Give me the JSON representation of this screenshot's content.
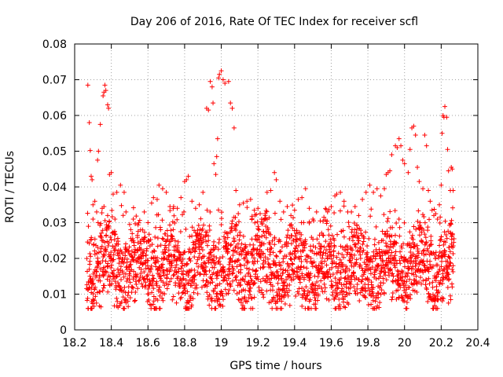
{
  "chart_data": {
    "type": "scatter",
    "title": "Day 206 of 2016, Rate Of TEC Index for receiver scfl",
    "xlabel": "GPS time / hours",
    "ylabel": "ROTI / TECUs",
    "xlim": [
      18.2,
      20.4
    ],
    "ylim": [
      0,
      0.08
    ],
    "x_ticks": [
      "18.2",
      "18.4",
      "18.6",
      "18.8",
      "19",
      "19.2",
      "19.4",
      "19.6",
      "19.8",
      "20",
      "20.2",
      "20.4"
    ],
    "y_ticks": [
      "0",
      "0.01",
      "0.02",
      "0.03",
      "0.04",
      "0.05",
      "0.06",
      "0.07",
      "0.08"
    ],
    "grid": true,
    "marker": "+",
    "color": "#ff0000",
    "series": [
      {
        "points": [
          [
            18.272,
            0.0685
          ],
          [
            18.28,
            0.058
          ],
          [
            18.285,
            0.0502
          ],
          [
            18.29,
            0.043
          ],
          [
            18.295,
            0.042
          ],
          [
            18.3,
            0.035
          ],
          [
            18.31,
            0.036
          ],
          [
            18.325,
            0.0475
          ],
          [
            18.33,
            0.05
          ],
          [
            18.34,
            0.0575
          ],
          [
            18.355,
            0.0655
          ],
          [
            18.36,
            0.0665
          ],
          [
            18.365,
            0.0685
          ],
          [
            18.37,
            0.067
          ],
          [
            18.38,
            0.063
          ],
          [
            18.385,
            0.062
          ],
          [
            18.39,
            0.0435
          ],
          [
            18.4,
            0.044
          ],
          [
            18.41,
            0.038
          ],
          [
            18.43,
            0.0385
          ],
          [
            18.45,
            0.0405
          ],
          [
            18.47,
            0.0385
          ],
          [
            18.35,
            0.034
          ],
          [
            18.36,
            0.0345
          ],
          [
            18.32,
            0.033
          ],
          [
            18.3,
            0.031
          ],
          [
            18.38,
            0.032
          ],
          [
            18.42,
            0.031
          ],
          [
            18.48,
            0.033
          ],
          [
            18.5,
            0.0295
          ],
          [
            18.52,
            0.031
          ],
          [
            18.56,
            0.028
          ],
          [
            18.58,
            0.033
          ],
          [
            18.6,
            0.03
          ],
          [
            18.62,
            0.0355
          ],
          [
            18.63,
            0.037
          ],
          [
            18.65,
            0.0365
          ],
          [
            18.66,
            0.0405
          ],
          [
            18.68,
            0.0395
          ],
          [
            18.7,
            0.0385
          ],
          [
            18.72,
            0.0345
          ],
          [
            18.74,
            0.0345
          ],
          [
            18.76,
            0.034
          ],
          [
            18.78,
            0.037
          ],
          [
            18.8,
            0.0415
          ],
          [
            18.81,
            0.042
          ],
          [
            18.82,
            0.043
          ],
          [
            18.84,
            0.036
          ],
          [
            18.86,
            0.034
          ],
          [
            18.88,
            0.035
          ],
          [
            18.9,
            0.0385
          ],
          [
            18.92,
            0.062
          ],
          [
            18.93,
            0.0615
          ],
          [
            18.94,
            0.0695
          ],
          [
            18.95,
            0.068
          ],
          [
            18.955,
            0.0635
          ],
          [
            18.96,
            0.0465
          ],
          [
            18.97,
            0.0435
          ],
          [
            18.975,
            0.0485
          ],
          [
            18.98,
            0.0535
          ],
          [
            18.985,
            0.0705
          ],
          [
            18.99,
            0.0715
          ],
          [
            19.0,
            0.0725
          ],
          [
            19.01,
            0.07
          ],
          [
            19.02,
            0.069
          ],
          [
            19.04,
            0.0695
          ],
          [
            19.05,
            0.0635
          ],
          [
            19.06,
            0.062
          ],
          [
            19.07,
            0.0565
          ],
          [
            19.08,
            0.039
          ],
          [
            19.1,
            0.035
          ],
          [
            19.12,
            0.0355
          ],
          [
            19.14,
            0.036
          ],
          [
            19.16,
            0.0365
          ],
          [
            19.18,
            0.0335
          ],
          [
            19.2,
            0.034
          ],
          [
            19.22,
            0.031
          ],
          [
            19.24,
            0.032
          ],
          [
            19.25,
            0.0385
          ],
          [
            19.27,
            0.039
          ],
          [
            19.29,
            0.044
          ],
          [
            19.3,
            0.042
          ],
          [
            19.32,
            0.036
          ],
          [
            19.34,
            0.033
          ],
          [
            19.36,
            0.0345
          ],
          [
            19.38,
            0.032
          ],
          [
            19.4,
            0.0335
          ],
          [
            19.42,
            0.0365
          ],
          [
            19.44,
            0.037
          ],
          [
            19.46,
            0.0395
          ],
          [
            19.48,
            0.034
          ],
          [
            19.5,
            0.031
          ],
          [
            19.52,
            0.033
          ],
          [
            19.54,
            0.0305
          ],
          [
            19.56,
            0.0315
          ],
          [
            19.58,
            0.033
          ],
          [
            19.6,
            0.0345
          ],
          [
            19.62,
            0.0375
          ],
          [
            19.63,
            0.038
          ],
          [
            19.65,
            0.0385
          ],
          [
            19.67,
            0.036
          ],
          [
            19.69,
            0.033
          ],
          [
            19.71,
            0.033
          ],
          [
            19.73,
            0.0345
          ],
          [
            19.75,
            0.032
          ],
          [
            19.77,
            0.0365
          ],
          [
            19.79,
            0.0385
          ],
          [
            19.81,
            0.0405
          ],
          [
            19.83,
            0.0385
          ],
          [
            19.85,
            0.0395
          ],
          [
            19.87,
            0.0375
          ],
          [
            19.89,
            0.0395
          ],
          [
            19.9,
            0.0435
          ],
          [
            19.91,
            0.044
          ],
          [
            19.92,
            0.0445
          ],
          [
            19.93,
            0.049
          ],
          [
            19.95,
            0.0515
          ],
          [
            19.96,
            0.051
          ],
          [
            19.97,
            0.0535
          ],
          [
            19.98,
            0.0515
          ],
          [
            19.99,
            0.0475
          ],
          [
            20.0,
            0.0465
          ],
          [
            20.02,
            0.044
          ],
          [
            20.03,
            0.0505
          ],
          [
            20.04,
            0.0565
          ],
          [
            20.05,
            0.057
          ],
          [
            20.06,
            0.0545
          ],
          [
            20.07,
            0.0455
          ],
          [
            20.08,
            0.0415
          ],
          [
            20.1,
            0.0395
          ],
          [
            20.11,
            0.0545
          ],
          [
            20.12,
            0.0515
          ],
          [
            20.13,
            0.039
          ],
          [
            20.14,
            0.036
          ],
          [
            20.15,
            0.0335
          ],
          [
            20.16,
            0.032
          ],
          [
            20.17,
            0.0325
          ],
          [
            20.18,
            0.031
          ],
          [
            20.19,
            0.035
          ],
          [
            20.2,
            0.0405
          ],
          [
            20.205,
            0.055
          ],
          [
            20.21,
            0.06
          ],
          [
            20.215,
            0.0595
          ],
          [
            20.22,
            0.0625
          ],
          [
            20.23,
            0.0595
          ],
          [
            20.235,
            0.0505
          ],
          [
            20.24,
            0.0445
          ],
          [
            20.25,
            0.039
          ],
          [
            20.255,
            0.0455
          ],
          [
            20.26,
            0.045
          ],
          [
            20.265,
            0.039
          ],
          [
            20.27,
            0.0255
          ],
          [
            20.26,
            0.012
          ],
          [
            20.25,
            0.0095
          ],
          [
            20.24,
            0.0075
          ]
        ]
      }
    ]
  }
}
